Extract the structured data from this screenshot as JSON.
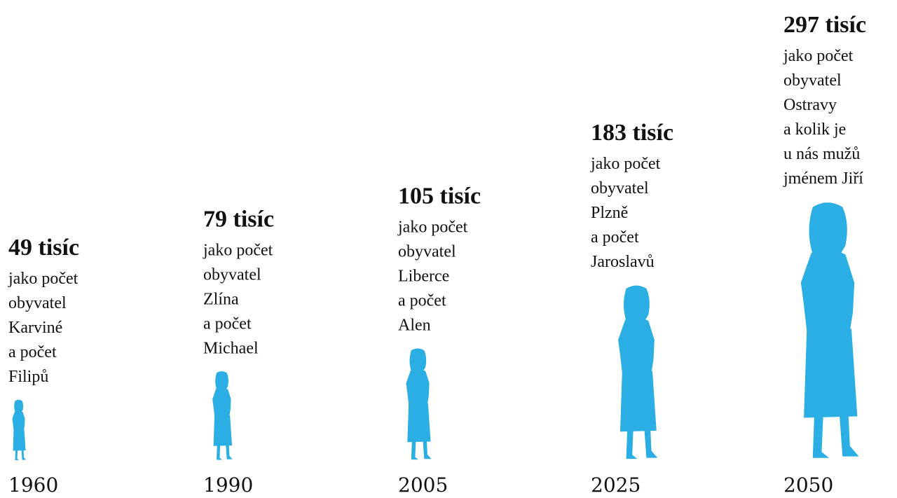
{
  "chart_data": {
    "type": "pictogram",
    "categories": [
      "1960",
      "1990",
      "2005",
      "2025",
      "2050"
    ],
    "values": [
      49,
      79,
      105,
      183,
      297
    ],
    "value_labels": [
      "49 tisíc",
      "79 tisíc",
      "105 tisíc",
      "183 tisíc",
      "297 tisíc"
    ],
    "descriptions": [
      [
        "jako počet",
        "obyvatel",
        "Karviné",
        "a počet",
        "Filipů"
      ],
      [
        "jako počet",
        "obyvatel",
        "Zlína",
        "a počet",
        "Michael"
      ],
      [
        "jako počet",
        "obyvatel",
        "Liberce",
        "a počet",
        "Alen"
      ],
      [
        "jako počet",
        "obyvatel",
        "Plzně",
        "a počet",
        "Jaroslavů"
      ],
      [
        "jako počet",
        "obyvatel",
        "Ostravy",
        "a kolik je",
        "u nás mužů",
        "jménem Jiří"
      ]
    ],
    "color": "#2aaee3"
  }
}
